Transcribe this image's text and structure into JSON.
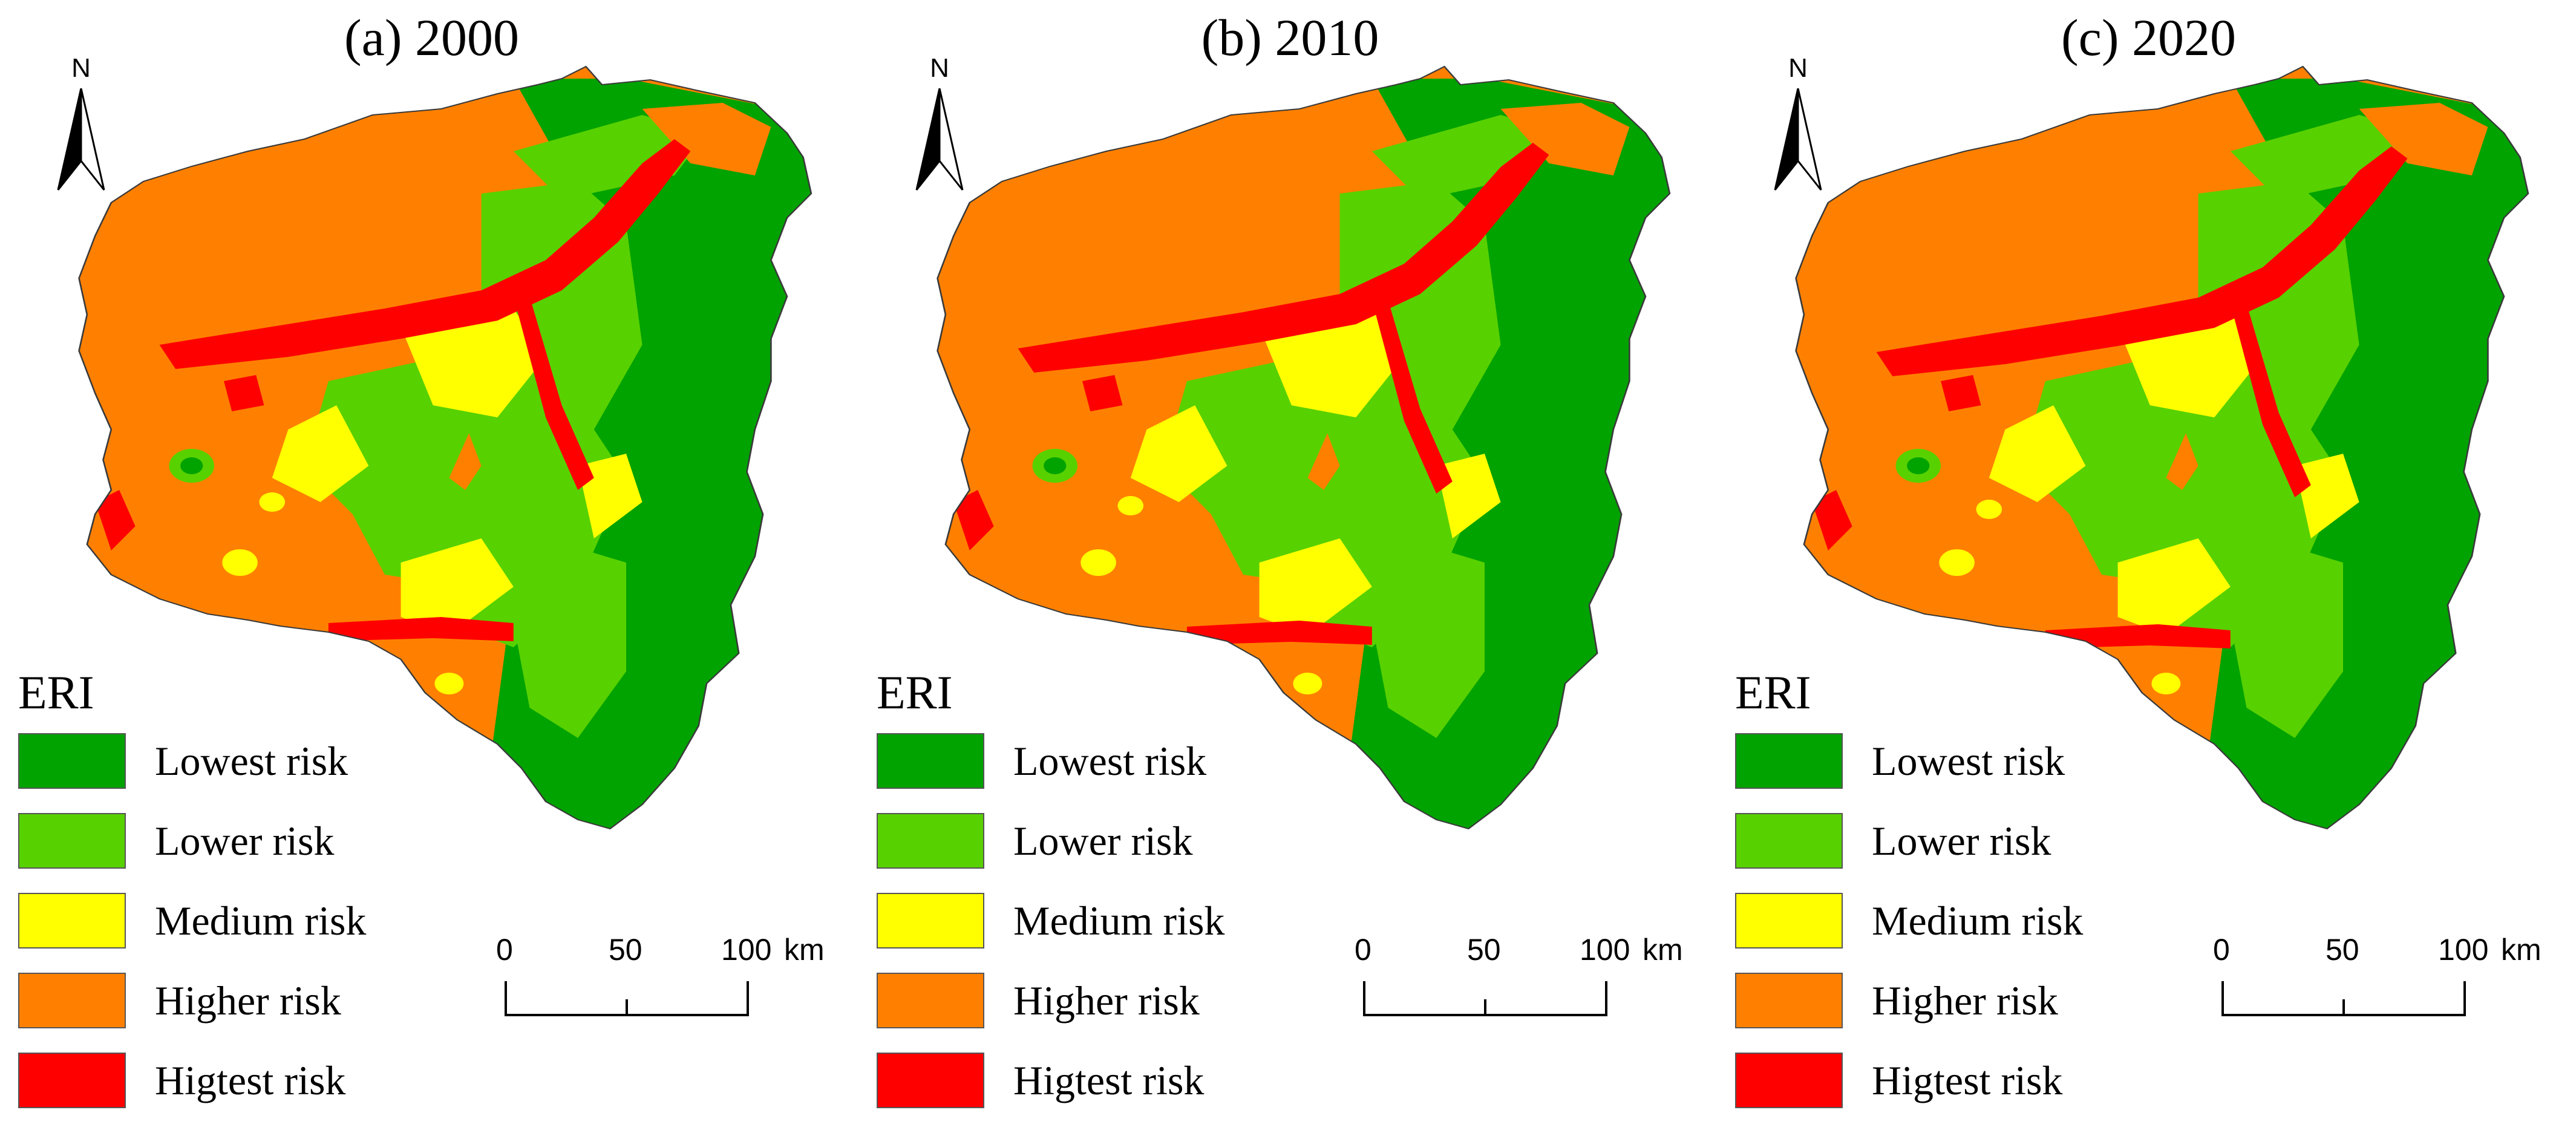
{
  "figure": {
    "panels": [
      {
        "title": "(a) 2000",
        "north_label": "N",
        "legend": {
          "title": "ERI",
          "items": [
            {
              "label": "Lowest risk",
              "color": "#00A300"
            },
            {
              "label": "Lower risk",
              "color": "#58D100"
            },
            {
              "label": "Medium risk",
              "color": "#FFFF00"
            },
            {
              "label": "Higher risk",
              "color": "#FF8000"
            },
            {
              "label": "Higtest risk",
              "color": "#FF0000"
            }
          ]
        },
        "scalebar": {
          "ticks": [
            "0",
            "50",
            "100"
          ],
          "unit": "km"
        }
      },
      {
        "title": "(b) 2010",
        "north_label": "N",
        "legend": {
          "title": "ERI",
          "items": [
            {
              "label": "Lowest risk",
              "color": "#00A300"
            },
            {
              "label": "Lower risk",
              "color": "#58D100"
            },
            {
              "label": "Medium risk",
              "color": "#FFFF00"
            },
            {
              "label": "Higher risk",
              "color": "#FF8000"
            },
            {
              "label": "Higtest risk",
              "color": "#FF0000"
            }
          ]
        },
        "scalebar": {
          "ticks": [
            "0",
            "50",
            "100"
          ],
          "unit": "km"
        }
      },
      {
        "title": "(c) 2020",
        "north_label": "N",
        "legend": {
          "title": "ERI",
          "items": [
            {
              "label": "Lowest risk",
              "color": "#00A300"
            },
            {
              "label": "Lower risk",
              "color": "#58D100"
            },
            {
              "label": "Medium risk",
              "color": "#FFFF00"
            },
            {
              "label": "Higher risk",
              "color": "#FF8000"
            },
            {
              "label": "Higtest risk",
              "color": "#FF0000"
            }
          ]
        },
        "scalebar": {
          "ticks": [
            "0",
            "50",
            "100"
          ],
          "unit": "km"
        }
      }
    ]
  }
}
